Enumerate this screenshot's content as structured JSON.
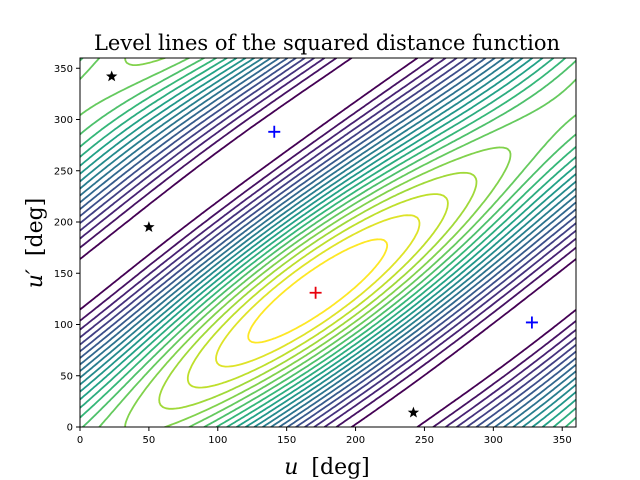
{
  "chart_data": {
    "type": "contour",
    "title": "Level lines of the squared distance function",
    "xlabel_var": "u",
    "xlabel_unit": "[deg]",
    "ylabel_var": "u′",
    "ylabel_unit": "[deg]",
    "xlim": [
      0,
      360
    ],
    "ylim": [
      0,
      360
    ],
    "xticks": [
      0,
      50,
      100,
      150,
      200,
      250,
      300,
      350
    ],
    "yticks": [
      0,
      50,
      100,
      150,
      200,
      250,
      300,
      350
    ],
    "colormap": "viridis",
    "level_count": 22,
    "maximum_point": {
      "u": 171,
      "u_prime": 131,
      "marker": "plus",
      "color": "#e8000b"
    },
    "minimum_points": [
      {
        "u": 141,
        "u_prime": 288,
        "marker": "plus",
        "color": "#0000ff"
      },
      {
        "u": 328,
        "u_prime": 102,
        "marker": "plus",
        "color": "#0000ff"
      }
    ],
    "saddle_points": [
      {
        "u": 23,
        "u_prime": 342,
        "marker": "star",
        "color": "#000000"
      },
      {
        "u": 50,
        "u_prime": 195,
        "marker": "star",
        "color": "#000000"
      },
      {
        "u": 242,
        "u_prime": 14,
        "marker": "star",
        "color": "#000000"
      }
    ]
  }
}
